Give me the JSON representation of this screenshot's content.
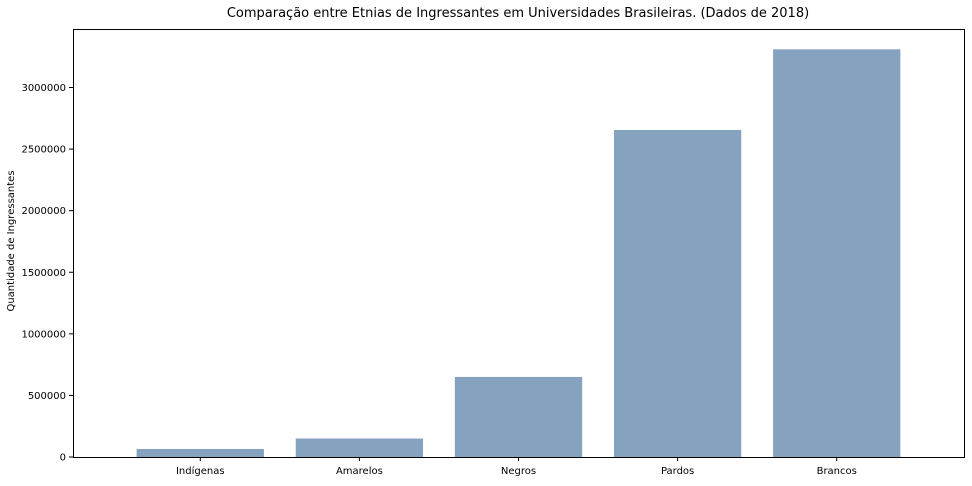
{
  "chart_data": {
    "type": "bar",
    "title": "Comparação entre Etnias de Ingressantes em Universidades Brasileiras. (Dados de 2018)",
    "xlabel": "",
    "ylabel": "Quantidade de Ingressantes",
    "categories": [
      "Indígenas",
      "Amarelos",
      "Negros",
      "Pardos",
      "Brancos"
    ],
    "values": [
      65000,
      150000,
      650000,
      2655000,
      3310000
    ],
    "ylim": [
      0,
      3475000
    ],
    "yticks": [
      0,
      500000,
      1000000,
      1500000,
      2000000,
      2500000,
      3000000
    ],
    "ytick_labels": [
      "0",
      "500000",
      "1000000",
      "1500000",
      "2000000",
      "2500000",
      "3000000"
    ],
    "grid": false,
    "legend": "none",
    "bar_color": "#85a3bf",
    "axis_color": "#000000"
  }
}
